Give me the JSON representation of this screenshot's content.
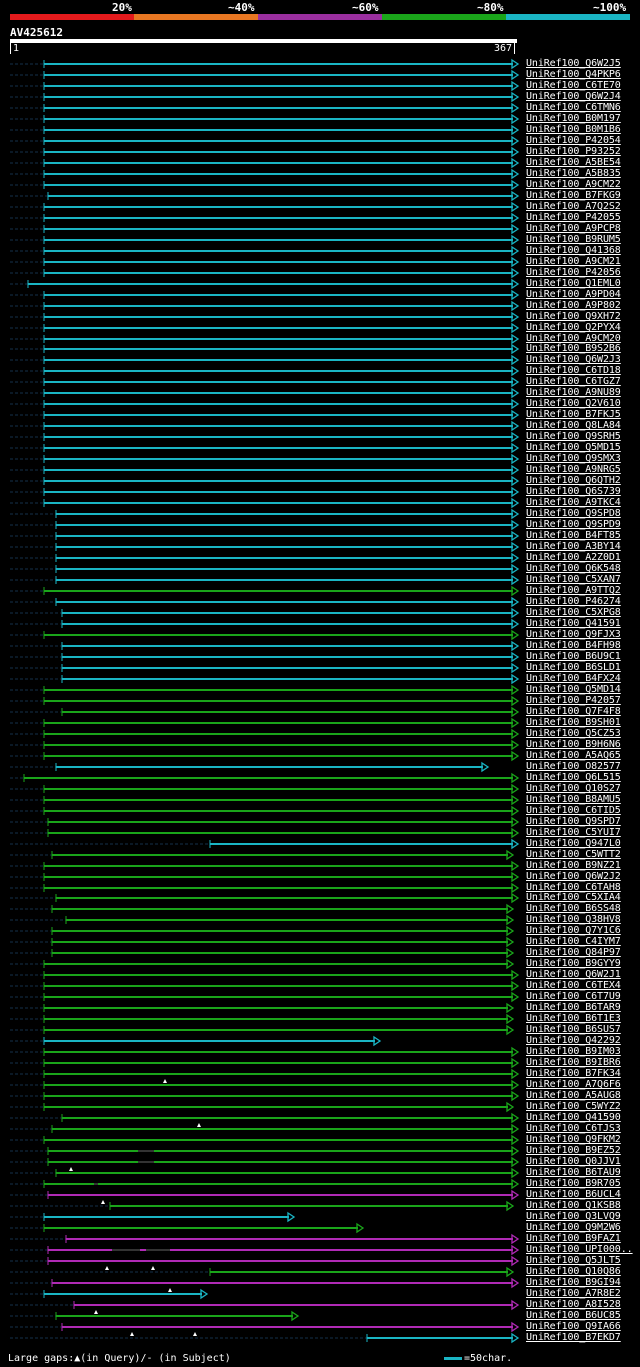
{
  "legend": {
    "labels": [
      "20%",
      "~40%",
      "~60%",
      "~80%",
      "~100%"
    ],
    "colors": [
      "#e41a1c",
      "#e87722",
      "#9b2fa0",
      "#1aa51a",
      "#1ab5c4"
    ]
  },
  "query": {
    "name": "AV425612",
    "start": "1",
    "end": "367"
  },
  "colors": {
    "c": "#1ab5c4",
    "g": "#1aa51a",
    "p": "#b02ab5",
    "dash": "#14304a"
  },
  "hits": [
    {
      "label": "UniRef100_Q6W2J5",
      "x1": 44,
      "x2": 517,
      "c": "c"
    },
    {
      "label": "UniRef100_Q4PKP6",
      "x1": 44,
      "x2": 517,
      "c": "c"
    },
    {
      "label": "UniRef100_C6TE70",
      "x1": 44,
      "x2": 517,
      "c": "c"
    },
    {
      "label": "UniRef100_Q6W2J4",
      "x1": 44,
      "x2": 517,
      "c": "c"
    },
    {
      "label": "UniRef100_C6TMN6",
      "x1": 44,
      "x2": 517,
      "c": "c"
    },
    {
      "label": "UniRef100_B0M197",
      "x1": 44,
      "x2": 517,
      "c": "c"
    },
    {
      "label": "UniRef100_B0M1B6",
      "x1": 44,
      "x2": 517,
      "c": "c"
    },
    {
      "label": "UniRef100_P42054",
      "x1": 44,
      "x2": 517,
      "c": "c"
    },
    {
      "label": "UniRef100_P93252",
      "x1": 44,
      "x2": 517,
      "c": "c"
    },
    {
      "label": "UniRef100_A5BE54",
      "x1": 44,
      "x2": 517,
      "c": "c"
    },
    {
      "label": "UniRef100_A5B835",
      "x1": 44,
      "x2": 517,
      "c": "c"
    },
    {
      "label": "UniRef100_A9CM22",
      "x1": 44,
      "x2": 517,
      "c": "c"
    },
    {
      "label": "UniRef100_B7FKG9",
      "x1": 48,
      "x2": 517,
      "c": "c"
    },
    {
      "label": "UniRef100_A7Q2S2",
      "x1": 44,
      "x2": 517,
      "c": "c"
    },
    {
      "label": "UniRef100_P42055",
      "x1": 44,
      "x2": 517,
      "c": "c"
    },
    {
      "label": "UniRef100_A9PCP8",
      "x1": 44,
      "x2": 517,
      "c": "c"
    },
    {
      "label": "UniRef100_B9RUM5",
      "x1": 44,
      "x2": 517,
      "c": "c"
    },
    {
      "label": "UniRef100_Q41368",
      "x1": 44,
      "x2": 517,
      "c": "c"
    },
    {
      "label": "UniRef100_A9CM21",
      "x1": 44,
      "x2": 517,
      "c": "c"
    },
    {
      "label": "UniRef100_P42056",
      "x1": 44,
      "x2": 517,
      "c": "c"
    },
    {
      "label": "UniRef100_Q1EML0",
      "x1": 28,
      "x2": 517,
      "c": "c"
    },
    {
      "label": "UniRef100_A9PD04",
      "x1": 44,
      "x2": 517,
      "c": "c"
    },
    {
      "label": "UniRef100_A9P802",
      "x1": 44,
      "x2": 517,
      "c": "c"
    },
    {
      "label": "UniRef100_Q9XH72",
      "x1": 44,
      "x2": 517,
      "c": "c"
    },
    {
      "label": "UniRef100_Q2PYX4",
      "x1": 44,
      "x2": 517,
      "c": "c"
    },
    {
      "label": "UniRef100_A9CM20",
      "x1": 44,
      "x2": 517,
      "c": "c"
    },
    {
      "label": "UniRef100_B9S2B6",
      "x1": 44,
      "x2": 517,
      "c": "c"
    },
    {
      "label": "UniRef100_Q6W2J3",
      "x1": 44,
      "x2": 517,
      "c": "c"
    },
    {
      "label": "UniRef100_C6TD18",
      "x1": 44,
      "x2": 517,
      "c": "c"
    },
    {
      "label": "UniRef100_C6TGZ7",
      "x1": 44,
      "x2": 517,
      "c": "c"
    },
    {
      "label": "UniRef100_A9NU89",
      "x1": 44,
      "x2": 517,
      "c": "c"
    },
    {
      "label": "UniRef100_Q2V610",
      "x1": 44,
      "x2": 517,
      "c": "c"
    },
    {
      "label": "UniRef100_B7FKJ5",
      "x1": 44,
      "x2": 517,
      "c": "c"
    },
    {
      "label": "UniRef100_Q8LA84",
      "x1": 44,
      "x2": 517,
      "c": "c"
    },
    {
      "label": "UniRef100_Q9SRH5",
      "x1": 44,
      "x2": 517,
      "c": "c"
    },
    {
      "label": "UniRef100_Q5MD15",
      "x1": 44,
      "x2": 517,
      "c": "c"
    },
    {
      "label": "UniRef100_Q9SMX3",
      "x1": 44,
      "x2": 517,
      "c": "c"
    },
    {
      "label": "UniRef100_A9NRG5",
      "x1": 44,
      "x2": 517,
      "c": "c"
    },
    {
      "label": "UniRef100_Q6QTH2",
      "x1": 44,
      "x2": 517,
      "c": "c"
    },
    {
      "label": "UniRef100_Q6S739",
      "x1": 44,
      "x2": 517,
      "c": "c"
    },
    {
      "label": "UniRef100_A9TKC4",
      "x1": 44,
      "x2": 517,
      "c": "c"
    },
    {
      "label": "UniRef100_Q9SPD8",
      "x1": 56,
      "x2": 517,
      "c": "c"
    },
    {
      "label": "UniRef100_Q9SPD9",
      "x1": 56,
      "x2": 517,
      "c": "c"
    },
    {
      "label": "UniRef100_B4FT85",
      "x1": 56,
      "x2": 517,
      "c": "c"
    },
    {
      "label": "UniRef100_A3BY14",
      "x1": 56,
      "x2": 517,
      "c": "c"
    },
    {
      "label": "UniRef100_A2Z0D1",
      "x1": 56,
      "x2": 517,
      "c": "c"
    },
    {
      "label": "UniRef100_Q6K548",
      "x1": 56,
      "x2": 517,
      "c": "c"
    },
    {
      "label": "UniRef100_C5XAN7",
      "x1": 56,
      "x2": 517,
      "c": "c"
    },
    {
      "label": "UniRef100_A9TTQ2",
      "x1": 44,
      "x2": 517,
      "c": "g"
    },
    {
      "label": "UniRef100_P46274",
      "x1": 56,
      "x2": 517,
      "c": "c"
    },
    {
      "label": "UniRef100_C5XPG8",
      "x1": 62,
      "x2": 517,
      "c": "c"
    },
    {
      "label": "UniRef100_Q41591",
      "x1": 62,
      "x2": 517,
      "c": "c"
    },
    {
      "label": "UniRef100_Q9FJX3",
      "x1": 44,
      "x2": 517,
      "c": "g"
    },
    {
      "label": "UniRef100_B4FH98",
      "x1": 62,
      "x2": 517,
      "c": "c"
    },
    {
      "label": "UniRef100_B6U9C1",
      "x1": 62,
      "x2": 517,
      "c": "c"
    },
    {
      "label": "UniRef100_B6SLD1",
      "x1": 62,
      "x2": 517,
      "c": "c"
    },
    {
      "label": "UniRef100_B4FX24",
      "x1": 62,
      "x2": 517,
      "c": "c"
    },
    {
      "label": "UniRef100_Q5MD14",
      "x1": 44,
      "x2": 517,
      "c": "g"
    },
    {
      "label": "UniRef100_P42057",
      "x1": 44,
      "x2": 517,
      "c": "g"
    },
    {
      "label": "UniRef100_Q7F4F8",
      "x1": 62,
      "x2": 517,
      "c": "g"
    },
    {
      "label": "UniRef100_B9SH01",
      "x1": 44,
      "x2": 517,
      "c": "g"
    },
    {
      "label": "UniRef100_Q5CZ53",
      "x1": 44,
      "x2": 517,
      "c": "g"
    },
    {
      "label": "UniRef100_B9H6N6",
      "x1": 44,
      "x2": 517,
      "c": "g"
    },
    {
      "label": "UniRef100_A5AQ65",
      "x1": 44,
      "x2": 517,
      "c": "g"
    },
    {
      "label": "UniRef100_O82577",
      "x1": 56,
      "x2": 487,
      "c": "c"
    },
    {
      "label": "UniRef100_Q6L515",
      "x1": 24,
      "x2": 517,
      "c": "g"
    },
    {
      "label": "UniRef100_Q10S27",
      "x1": 44,
      "x2": 517,
      "c": "g"
    },
    {
      "label": "UniRef100_B8AMU5",
      "x1": 44,
      "x2": 517,
      "c": "g"
    },
    {
      "label": "UniRef100_C6TID5",
      "x1": 44,
      "x2": 517,
      "c": "g"
    },
    {
      "label": "UniRef100_Q9SPD7",
      "x1": 48,
      "x2": 517,
      "c": "g"
    },
    {
      "label": "UniRef100_C5YUI7",
      "x1": 48,
      "x2": 517,
      "c": "g"
    },
    {
      "label": "UniRef100_Q947L0",
      "x1": 210,
      "x2": 517,
      "c": "c"
    },
    {
      "label": "UniRef100_C5WTT2",
      "x1": 52,
      "x2": 512,
      "c": "g"
    },
    {
      "label": "UniRef100_B9NZ21",
      "x1": 44,
      "x2": 517,
      "c": "g"
    },
    {
      "label": "UniRef100_Q6W2J2",
      "x1": 44,
      "x2": 517,
      "c": "g"
    },
    {
      "label": "UniRef100_C6TAH8",
      "x1": 44,
      "x2": 517,
      "c": "g"
    },
    {
      "label": "UniRef100_C5XIA4",
      "x1": 56,
      "x2": 517,
      "c": "g"
    },
    {
      "label": "UniRef100_B6SS48",
      "x1": 52,
      "x2": 512,
      "c": "g"
    },
    {
      "label": "UniRef100_Q38HV8",
      "x1": 66,
      "x2": 512,
      "c": "g"
    },
    {
      "label": "UniRef100_Q7Y1C6",
      "x1": 52,
      "x2": 512,
      "c": "g"
    },
    {
      "label": "UniRef100_C4IYM7",
      "x1": 52,
      "x2": 512,
      "c": "g"
    },
    {
      "label": "UniRef100_Q84P97",
      "x1": 52,
      "x2": 512,
      "c": "g"
    },
    {
      "label": "UniRef100_B9GYY9",
      "x1": 44,
      "x2": 512,
      "c": "g"
    },
    {
      "label": "UniRef100_Q6W2J1",
      "x1": 44,
      "x2": 517,
      "c": "g"
    },
    {
      "label": "UniRef100_C6TEX4",
      "x1": 44,
      "x2": 517,
      "c": "g"
    },
    {
      "label": "UniRef100_C6T7U9",
      "x1": 44,
      "x2": 517,
      "c": "g"
    },
    {
      "label": "UniRef100_B6TAR9",
      "x1": 44,
      "x2": 512,
      "c": "g"
    },
    {
      "label": "UniRef100_B6T1E3",
      "x1": 44,
      "x2": 512,
      "c": "g"
    },
    {
      "label": "UniRef100_B6SUS7",
      "x1": 44,
      "x2": 512,
      "c": "g"
    },
    {
      "label": "UniRef100_Q42292",
      "x1": 44,
      "x2": 379,
      "c": "c"
    },
    {
      "label": "UniRef100_B9IM03",
      "x1": 44,
      "x2": 517,
      "c": "g"
    },
    {
      "label": "UniRef100_B9IBR6",
      "x1": 44,
      "x2": 517,
      "c": "g"
    },
    {
      "label": "UniRef100_B7FK34",
      "x1": 44,
      "x2": 517,
      "c": "g",
      "tri": [
        165
      ]
    },
    {
      "label": "UniRef100_A7Q6F6",
      "x1": 44,
      "x2": 517,
      "c": "g"
    },
    {
      "label": "UniRef100_A5AUG8",
      "x1": 44,
      "x2": 517,
      "c": "g"
    },
    {
      "label": "UniRef100_C5WYZ2",
      "x1": 44,
      "x2": 512,
      "c": "g"
    },
    {
      "label": "UniRef100_Q41590",
      "x1": 62,
      "x2": 517,
      "c": "g",
      "tri": [
        199
      ]
    },
    {
      "label": "UniRef100_C6TJS3",
      "x1": 52,
      "x2": 517,
      "c": "g"
    },
    {
      "label": "UniRef100_Q9FKM2",
      "x1": 44,
      "x2": 517,
      "c": "g"
    },
    {
      "label": "UniRef100_B9EZ52",
      "x1": 48,
      "x2": 517,
      "c": "g",
      "gaps": [
        [
          138,
          154
        ]
      ]
    },
    {
      "label": "UniRef100_Q0JJV1",
      "x1": 48,
      "x2": 517,
      "c": "g",
      "gaps": [
        [
          138,
          154
        ]
      ],
      "tri": [
        71
      ]
    },
    {
      "label": "UniRef100_B6TAU9",
      "x1": 56,
      "x2": 517,
      "c": "g"
    },
    {
      "label": "UniRef100_B9R705",
      "x1": 44,
      "x2": 517,
      "c": "g",
      "gaps": [
        [
          94,
          98
        ]
      ]
    },
    {
      "label": "UniRef100_B6UCL4",
      "x1": 48,
      "x2": 517,
      "c": "p",
      "tri": [
        103
      ]
    },
    {
      "label": "UniRef100_Q1KSB8",
      "x1": 110,
      "x2": 512,
      "c": "g"
    },
    {
      "label": "UniRef100_Q3LVQ9",
      "x1": 44,
      "x2": 293,
      "c": "c"
    },
    {
      "label": "UniRef100_Q9M2W6",
      "x1": 44,
      "x2": 362,
      "c": "g"
    },
    {
      "label": "UniRef100_B9FAZ1",
      "x1": 66,
      "x2": 517,
      "c": "p"
    },
    {
      "label": "UniRef100_UPI000..",
      "x1": 48,
      "x2": 517,
      "c": "p",
      "gaps": [
        [
          112,
          140
        ],
        [
          146,
          170
        ]
      ]
    },
    {
      "label": "UniRef100_Q5JLT5",
      "x1": 48,
      "x2": 517,
      "c": "p",
      "tri": [
        107,
        153
      ]
    },
    {
      "label": "UniRef100_Q10Q86",
      "x1": 210,
      "x2": 512,
      "c": "g"
    },
    {
      "label": "UniRef100_B9GI94",
      "x1": 52,
      "x2": 517,
      "c": "p",
      "tri": [
        170
      ]
    },
    {
      "label": "UniRef100_A7R8E2",
      "x1": 44,
      "x2": 206,
      "c": "c"
    },
    {
      "label": "UniRef100_A8I528",
      "x1": 74,
      "x2": 517,
      "c": "p",
      "tri": [
        96
      ]
    },
    {
      "label": "UniRef100_B6UC85",
      "x1": 56,
      "x2": 297,
      "c": "g"
    },
    {
      "label": "UniRef100_Q9IA66",
      "x1": 62,
      "x2": 517,
      "c": "p",
      "tri": [
        132,
        195
      ]
    },
    {
      "label": "UniRef100_B7EKD7",
      "x1": 367,
      "x2": 517,
      "c": "c"
    }
  ],
  "footer": {
    "gaps_text": "Large gaps:▲(in Query)/- (in Subject)",
    "scale_text": "=50char."
  }
}
